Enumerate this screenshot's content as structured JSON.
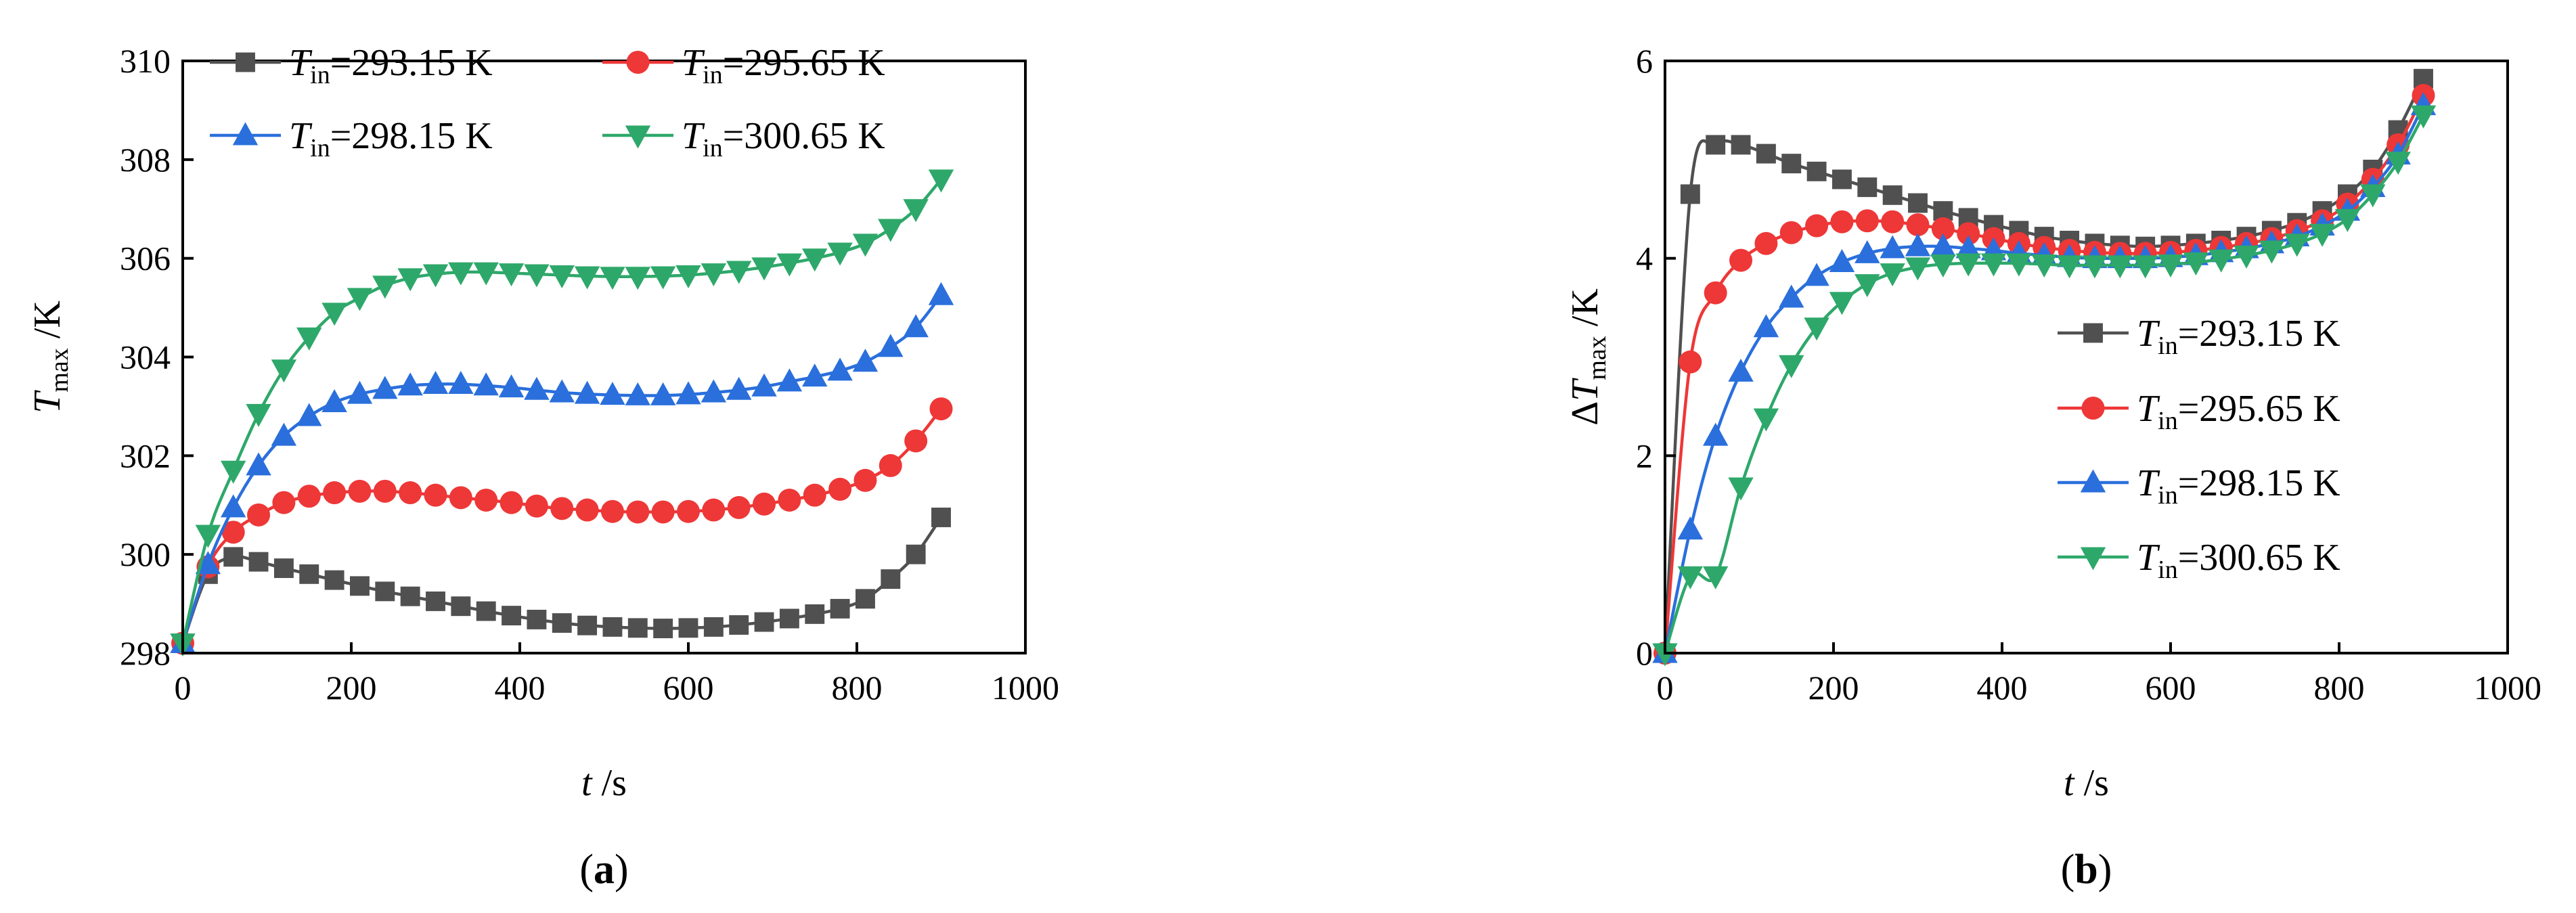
{
  "colors": {
    "s1": "#505050",
    "s2": "#ee3737",
    "s3": "#2a6fdc",
    "s4": "#2ea86a",
    "axis": "#000000"
  },
  "chart_data": [
    {
      "type": "line",
      "panel_label": "a",
      "xlabel": {
        "var": "t",
        "unit": "/s"
      },
      "ylabel": {
        "var": "T",
        "sub": "max",
        "unit": "/K"
      },
      "xlim": [
        0,
        1000
      ],
      "ylim": [
        298,
        310
      ],
      "xticks": [
        "0",
        "200",
        "400",
        "600",
        "800",
        "1000"
      ],
      "yticks": [
        "298",
        "300",
        "302",
        "304",
        "306",
        "308",
        "310"
      ],
      "legend_position": "top",
      "series": [
        {
          "name": "Tin=293.15 K",
          "label_var": "T",
          "label_sub": "in",
          "label_val": "=293.15 K",
          "marker": "square",
          "color_key": "s1",
          "x": [
            0,
            30,
            60,
            90,
            120,
            150,
            180,
            210,
            240,
            270,
            300,
            330,
            360,
            390,
            420,
            450,
            480,
            510,
            540,
            570,
            600,
            630,
            660,
            690,
            720,
            750,
            780,
            810,
            840,
            870,
            900
          ],
          "y": [
            298.2,
            299.6,
            299.95,
            299.85,
            299.72,
            299.6,
            299.48,
            299.36,
            299.25,
            299.15,
            299.05,
            298.95,
            298.85,
            298.76,
            298.68,
            298.61,
            298.56,
            298.53,
            298.51,
            298.5,
            298.51,
            298.53,
            298.57,
            298.63,
            298.7,
            298.79,
            298.9,
            299.1,
            299.5,
            300.0,
            300.75
          ]
        },
        {
          "name": "Tin=295.65 K",
          "label_var": "T",
          "label_sub": "in",
          "label_val": "=295.65 K",
          "marker": "circle",
          "color_key": "s2",
          "x": [
            0,
            30,
            60,
            90,
            120,
            150,
            180,
            210,
            240,
            270,
            300,
            330,
            360,
            390,
            420,
            450,
            480,
            510,
            540,
            570,
            600,
            630,
            660,
            690,
            720,
            750,
            780,
            810,
            840,
            870,
            900
          ],
          "y": [
            298.2,
            299.75,
            300.45,
            300.8,
            301.05,
            301.18,
            301.25,
            301.28,
            301.28,
            301.25,
            301.2,
            301.15,
            301.1,
            301.05,
            300.98,
            300.93,
            300.9,
            300.87,
            300.86,
            300.86,
            300.87,
            300.9,
            300.95,
            301.02,
            301.1,
            301.2,
            301.32,
            301.5,
            301.8,
            302.3,
            302.95
          ]
        },
        {
          "name": "Tin=298.15 K",
          "label_var": "T",
          "label_sub": "in",
          "label_val": "=298.15 K",
          "marker": "triangle-up",
          "color_key": "s3",
          "x": [
            0,
            30,
            60,
            90,
            120,
            150,
            180,
            210,
            240,
            270,
            300,
            330,
            360,
            390,
            420,
            450,
            480,
            510,
            540,
            570,
            600,
            630,
            660,
            690,
            720,
            750,
            780,
            810,
            840,
            870,
            900
          ],
          "y": [
            298.2,
            299.8,
            300.95,
            301.8,
            302.4,
            302.8,
            303.08,
            303.25,
            303.35,
            303.42,
            303.45,
            303.45,
            303.42,
            303.38,
            303.33,
            303.28,
            303.25,
            303.23,
            303.22,
            303.22,
            303.24,
            303.28,
            303.33,
            303.4,
            303.5,
            303.6,
            303.72,
            303.9,
            304.2,
            304.6,
            305.25
          ]
        },
        {
          "name": "Tin=300.65 K",
          "label_var": "T",
          "label_sub": "in",
          "label_val": "=300.65 K",
          "marker": "triangle-down",
          "color_key": "s4",
          "x": [
            0,
            30,
            60,
            90,
            120,
            150,
            180,
            210,
            240,
            270,
            300,
            330,
            360,
            390,
            420,
            450,
            480,
            510,
            540,
            570,
            600,
            630,
            660,
            690,
            720,
            750,
            780,
            810,
            840,
            870,
            900
          ],
          "y": [
            298.2,
            300.4,
            301.7,
            302.85,
            303.75,
            304.4,
            304.9,
            305.2,
            305.45,
            305.6,
            305.68,
            305.72,
            305.72,
            305.7,
            305.68,
            305.66,
            305.64,
            305.63,
            305.63,
            305.64,
            305.66,
            305.7,
            305.75,
            305.82,
            305.9,
            306.0,
            306.12,
            306.3,
            306.6,
            307.0,
            307.6
          ]
        }
      ]
    },
    {
      "type": "line",
      "panel_label": "b",
      "xlabel": {
        "var": "t",
        "unit": "/s"
      },
      "ylabel": {
        "prefix": "Δ",
        "var": "T",
        "sub": "max",
        "unit": "/K"
      },
      "xlim": [
        0,
        1000
      ],
      "ylim": [
        0,
        6
      ],
      "xticks": [
        "0",
        "200",
        "400",
        "600",
        "800",
        "1000"
      ],
      "yticks": [
        "0",
        "2",
        "4",
        "6"
      ],
      "legend_position": "right",
      "series": [
        {
          "name": "Tin=293.15 K",
          "label_var": "T",
          "label_sub": "in",
          "label_val": "=293.15 K",
          "marker": "square",
          "color_key": "s1",
          "x": [
            0,
            30,
            60,
            90,
            120,
            150,
            180,
            210,
            240,
            270,
            300,
            330,
            360,
            390,
            420,
            450,
            480,
            510,
            540,
            570,
            600,
            630,
            660,
            690,
            720,
            750,
            780,
            810,
            840,
            870,
            900
          ],
          "y": [
            0,
            4.65,
            5.15,
            5.15,
            5.06,
            4.96,
            4.88,
            4.8,
            4.72,
            4.64,
            4.56,
            4.48,
            4.41,
            4.34,
            4.28,
            4.22,
            4.18,
            4.15,
            4.13,
            4.12,
            4.13,
            4.15,
            4.18,
            4.22,
            4.28,
            4.36,
            4.48,
            4.65,
            4.9,
            5.3,
            5.82
          ]
        },
        {
          "name": "Tin=295.65 K",
          "label_var": "T",
          "label_sub": "in",
          "label_val": "=295.65 K",
          "marker": "circle",
          "color_key": "s2",
          "x": [
            0,
            30,
            60,
            90,
            120,
            150,
            180,
            210,
            240,
            270,
            300,
            330,
            360,
            390,
            420,
            450,
            480,
            510,
            540,
            570,
            600,
            630,
            660,
            690,
            720,
            750,
            780,
            810,
            840,
            870,
            900
          ],
          "y": [
            0,
            2.95,
            3.65,
            3.98,
            4.15,
            4.26,
            4.33,
            4.37,
            4.38,
            4.37,
            4.34,
            4.3,
            4.25,
            4.2,
            4.15,
            4.11,
            4.08,
            4.06,
            4.05,
            4.05,
            4.06,
            4.08,
            4.11,
            4.15,
            4.2,
            4.28,
            4.38,
            4.55,
            4.8,
            5.15,
            5.65
          ]
        },
        {
          "name": "Tin=298.15 K",
          "label_var": "T",
          "label_sub": "in",
          "label_val": "=298.15 K",
          "marker": "triangle-up",
          "color_key": "s3",
          "x": [
            0,
            30,
            60,
            90,
            120,
            150,
            180,
            210,
            240,
            270,
            300,
            330,
            360,
            390,
            420,
            450,
            480,
            510,
            540,
            570,
            600,
            630,
            660,
            690,
            720,
            750,
            780,
            810,
            840,
            870,
            900
          ],
          "y": [
            0,
            1.25,
            2.2,
            2.85,
            3.3,
            3.6,
            3.82,
            3.96,
            4.05,
            4.1,
            4.12,
            4.12,
            4.1,
            4.08,
            4.05,
            4.03,
            4.01,
            4.0,
            4.0,
            4.0,
            4.01,
            4.03,
            4.06,
            4.1,
            4.15,
            4.22,
            4.33,
            4.48,
            4.72,
            5.05,
            5.55
          ]
        },
        {
          "name": "Tin=300.65 K",
          "label_var": "T",
          "label_sub": "in",
          "label_val": "=300.65 K",
          "marker": "triangle-down",
          "color_key": "s4",
          "x": [
            0,
            30,
            60,
            90,
            120,
            150,
            180,
            210,
            240,
            270,
            300,
            330,
            360,
            390,
            420,
            450,
            480,
            510,
            540,
            570,
            600,
            630,
            660,
            690,
            720,
            750,
            780,
            810,
            840,
            870,
            900
          ],
          "y": [
            0,
            0.78,
            0.78,
            1.68,
            2.38,
            2.92,
            3.3,
            3.56,
            3.74,
            3.85,
            3.91,
            3.94,
            3.95,
            3.95,
            3.95,
            3.94,
            3.93,
            3.93,
            3.93,
            3.93,
            3.94,
            3.96,
            3.99,
            4.03,
            4.08,
            4.15,
            4.25,
            4.4,
            4.65,
            4.98,
            5.45
          ]
        }
      ]
    }
  ]
}
